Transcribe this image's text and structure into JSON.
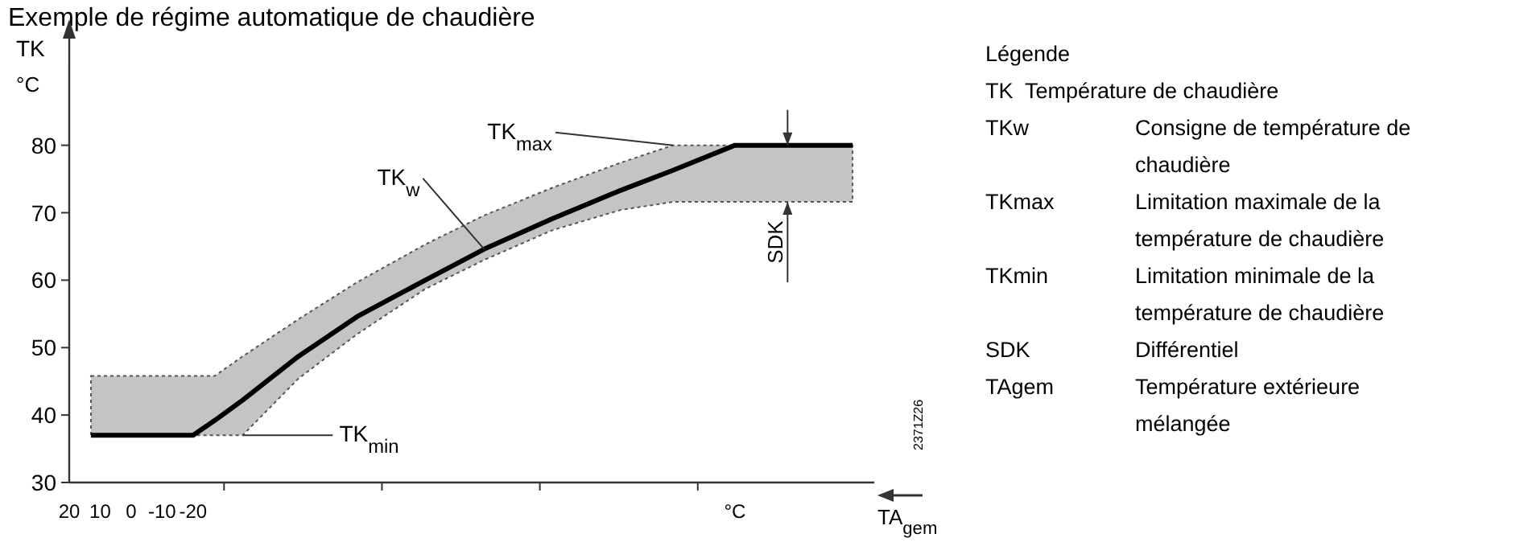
{
  "chart_data": {
    "type": "line",
    "title": "Exemple de régime automatique de chaudière",
    "ylabel": "TK",
    "xlabel": "TA$_{gem}$",
    "xlim": [
      20,
      -240
    ],
    "ylim": [
      30,
      92
    ],
    "xticks": [
      20,
      10,
      0,
      -10,
      -20,
      {
        "value": -30,
        "label": null
      },
      {
        "value": -81,
        "label": null
      },
      {
        "value": -132,
        "label": null
      },
      {
        "value": -183,
        "label": null
      }
    ],
    "yticks": [
      30,
      40,
      50,
      60,
      70,
      80
    ],
    "grid": false,
    "marker": "none",
    "series": [
      {
        "color": "#000000",
        "x": [
          13,
          -20,
          -27,
          -36,
          -54,
          -73,
          -95,
          -114,
          -136,
          -158,
          -175,
          -195,
          -233
        ],
        "values": [
          37,
          37,
          39.2,
          42.2,
          48.7,
          54.6,
          60,
          64.6,
          69.1,
          73.3,
          76.3,
          80,
          80
        ],
        "lower": [
          37,
          37,
          37,
          37,
          45.4,
          52,
          58.7,
          63,
          67.4,
          70.4,
          71.6,
          71.6,
          71.6
        ],
        "upper": [
          45.8,
          45.8,
          45.8,
          48.7,
          54.2,
          59.7,
          65.3,
          69.6,
          73.7,
          77.4,
          80,
          80,
          80
        ]
      }
    ],
    "annotations": [
      {
        "text": "TK$_{max}$",
        "x": -175,
        "y": 80
      },
      {
        "text": "TK$_{w}$",
        "x": -114,
        "y": 64.6
      },
      {
        "text": "TK$_{min}$",
        "x": -36,
        "y": 37
      },
      "SDK",
      "°C",
      "°C",
      "2371Z26",
      "Légende",
      "TK\tTempérature de chaudière",
      "TKw\tConsigne de température de chaudière",
      "TKmax\tLimitation maximale de la température de chaudière",
      "TKmin\tLimitation minimale de la température de chaudière",
      "SDK\tDifférentiel",
      "TAgem\tTempérature extérieure mélangée"
    ]
  }
}
